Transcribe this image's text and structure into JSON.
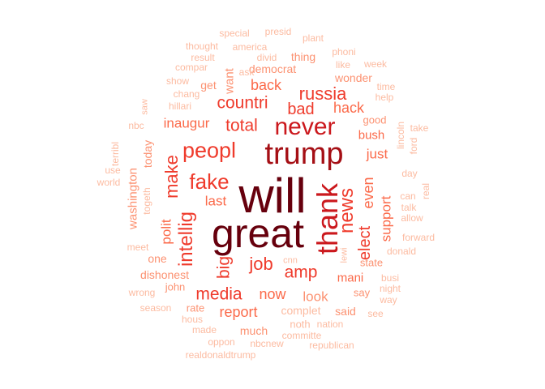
{
  "colors": {
    "c1": "#67000d",
    "c2": "#a50f15",
    "c3": "#cb181d",
    "c4": "#ef3b2c",
    "c5": "#fb6a4a",
    "c6": "#fc9272",
    "c7": "#fcbba1"
  },
  "words": [
    {
      "text": "will",
      "tier": "c1"
    },
    {
      "text": "great",
      "tier": "c1"
    },
    {
      "text": "trump",
      "tier": "c2"
    },
    {
      "text": "thank",
      "tier": "c3"
    },
    {
      "text": "never",
      "tier": "c3"
    },
    {
      "text": "peopl",
      "tier": "c4"
    },
    {
      "text": "fake",
      "tier": "c4"
    },
    {
      "text": "news",
      "tier": "c4"
    },
    {
      "text": "russia",
      "tier": "c4"
    },
    {
      "text": "intellig",
      "tier": "c4"
    },
    {
      "text": "make",
      "tier": "c4"
    },
    {
      "text": "elect",
      "tier": "c4"
    },
    {
      "text": "countri",
      "tier": "c4"
    },
    {
      "text": "total",
      "tier": "c4"
    },
    {
      "text": "bad",
      "tier": "c4"
    },
    {
      "text": "job",
      "tier": "c4"
    },
    {
      "text": "media",
      "tier": "c4"
    },
    {
      "text": "amp",
      "tier": "c4"
    },
    {
      "text": "big",
      "tier": "c4"
    },
    {
      "text": "back",
      "tier": "c5"
    },
    {
      "text": "hack",
      "tier": "c5"
    },
    {
      "text": "inaugur",
      "tier": "c5"
    },
    {
      "text": "even",
      "tier": "c5"
    },
    {
      "text": "support",
      "tier": "c5"
    },
    {
      "text": "just",
      "tier": "c5"
    },
    {
      "text": "bush",
      "tier": "c5"
    },
    {
      "text": "last",
      "tier": "c5"
    },
    {
      "text": "polit",
      "tier": "c5"
    },
    {
      "text": "now",
      "tier": "c5"
    },
    {
      "text": "report",
      "tier": "c5"
    },
    {
      "text": "mani",
      "tier": "c5"
    },
    {
      "text": "want",
      "tier": "c6"
    },
    {
      "text": "democrat",
      "tier": "c6"
    },
    {
      "text": "thing",
      "tier": "c6"
    },
    {
      "text": "wonder",
      "tier": "c6"
    },
    {
      "text": "get",
      "tier": "c6"
    },
    {
      "text": "today",
      "tier": "c6"
    },
    {
      "text": "washington",
      "tier": "c6"
    },
    {
      "text": "one",
      "tier": "c6"
    },
    {
      "text": "dishonest",
      "tier": "c6"
    },
    {
      "text": "john",
      "tier": "c6"
    },
    {
      "text": "look",
      "tier": "c6"
    },
    {
      "text": "much",
      "tier": "c6"
    },
    {
      "text": "said",
      "tier": "c6"
    },
    {
      "text": "say",
      "tier": "c6"
    },
    {
      "text": "state",
      "tier": "c6"
    },
    {
      "text": "good",
      "tier": "c6"
    },
    {
      "text": "rate",
      "tier": "c6"
    },
    {
      "text": "special",
      "tier": "c7"
    },
    {
      "text": "presid",
      "tier": "c7"
    },
    {
      "text": "plant",
      "tier": "c7"
    },
    {
      "text": "thought",
      "tier": "c7"
    },
    {
      "text": "america",
      "tier": "c7"
    },
    {
      "text": "phoni",
      "tier": "c7"
    },
    {
      "text": "result",
      "tier": "c7"
    },
    {
      "text": "divid",
      "tier": "c7"
    },
    {
      "text": "compar",
      "tier": "c7"
    },
    {
      "text": "ask",
      "tier": "c7"
    },
    {
      "text": "like",
      "tier": "c7"
    },
    {
      "text": "week",
      "tier": "c7"
    },
    {
      "text": "show",
      "tier": "c7"
    },
    {
      "text": "chang",
      "tier": "c7"
    },
    {
      "text": "time",
      "tier": "c7"
    },
    {
      "text": "help",
      "tier": "c7"
    },
    {
      "text": "hillari",
      "tier": "c7"
    },
    {
      "text": "saw",
      "tier": "c7"
    },
    {
      "text": "nbc",
      "tier": "c7"
    },
    {
      "text": "lincoln",
      "tier": "c7"
    },
    {
      "text": "ford",
      "tier": "c7"
    },
    {
      "text": "take",
      "tier": "c7"
    },
    {
      "text": "terribl",
      "tier": "c7"
    },
    {
      "text": "use",
      "tier": "c7"
    },
    {
      "text": "world",
      "tier": "c7"
    },
    {
      "text": "togeth",
      "tier": "c7"
    },
    {
      "text": "day",
      "tier": "c7"
    },
    {
      "text": "can",
      "tier": "c7"
    },
    {
      "text": "talk",
      "tier": "c7"
    },
    {
      "text": "allow",
      "tier": "c7"
    },
    {
      "text": "real",
      "tier": "c7"
    },
    {
      "text": "meet",
      "tier": "c7"
    },
    {
      "text": "forward",
      "tier": "c7"
    },
    {
      "text": "donald",
      "tier": "c7"
    },
    {
      "text": "lewi",
      "tier": "c7"
    },
    {
      "text": "cnn",
      "tier": "c7"
    },
    {
      "text": "busi",
      "tier": "c7"
    },
    {
      "text": "night",
      "tier": "c7"
    },
    {
      "text": "way",
      "tier": "c7"
    },
    {
      "text": "wrong",
      "tier": "c7"
    },
    {
      "text": "season",
      "tier": "c7"
    },
    {
      "text": "hous",
      "tier": "c7"
    },
    {
      "text": "complet",
      "tier": "c7"
    },
    {
      "text": "see",
      "tier": "c7"
    },
    {
      "text": "noth",
      "tier": "c7"
    },
    {
      "text": "nation",
      "tier": "c7"
    },
    {
      "text": "made",
      "tier": "c7"
    },
    {
      "text": "committe",
      "tier": "c7"
    },
    {
      "text": "oppon",
      "tier": "c7"
    },
    {
      "text": "nbcnew",
      "tier": "c7"
    },
    {
      "text": "republican",
      "tier": "c7"
    },
    {
      "text": "realdonaldtrump",
      "tier": "c7"
    }
  ]
}
